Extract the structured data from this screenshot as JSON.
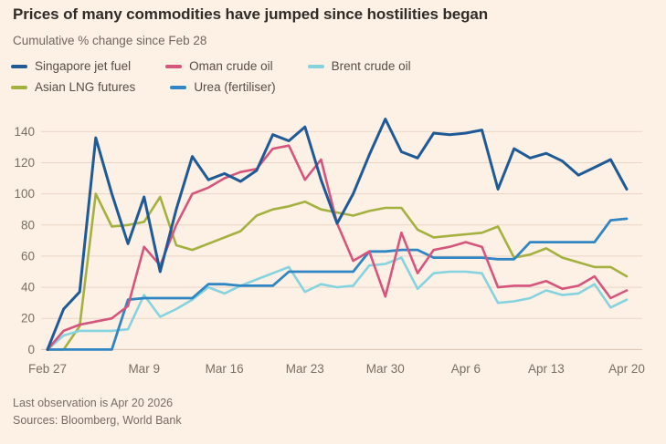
{
  "header": {
    "title": "Prices of many commodities have jumped since hostilities began",
    "subtitle": "Cumulative % change since Feb 28"
  },
  "footer": {
    "note": "Last observation is Apr 20 2026",
    "sources": "Sources: Bloomberg, World Bank"
  },
  "colors": {
    "background": "#fdf0e5",
    "gridline": "#e9d5c6",
    "zero_line": "#d9c3b2",
    "axis_text": "#7a6e62",
    "title_text": "#302c28"
  },
  "chart_data": {
    "type": "line",
    "title": "Prices of many commodities have jumped since hostilities began",
    "subtitle": "Cumulative % change since Feb 28",
    "xlabel": "",
    "ylabel": "Cumulative % change since Feb 28",
    "ylim": [
      0,
      150
    ],
    "grid": "horizontal",
    "legend_position": "top",
    "y_ticks": [
      0,
      20,
      40,
      60,
      80,
      100,
      120,
      140
    ],
    "x_tick_labels": [
      "Feb 27",
      "Mar 9",
      "Mar 16",
      "Mar 23",
      "Mar 30",
      "Apr 6",
      "Apr 13",
      "Apr 20"
    ],
    "x_tick_indices": [
      0,
      6,
      11,
      16,
      21,
      26,
      31,
      36
    ],
    "x": [
      "Feb 27",
      "Mar 2",
      "Mar 3",
      "Mar 4",
      "Mar 5",
      "Mar 6",
      "Mar 9",
      "Mar 10",
      "Mar 11",
      "Mar 12",
      "Mar 13",
      "Mar 16",
      "Mar 17",
      "Mar 18",
      "Mar 19",
      "Mar 20",
      "Mar 23",
      "Mar 24",
      "Mar 25",
      "Mar 26",
      "Mar 27",
      "Mar 30",
      "Mar 31",
      "Apr 1",
      "Apr 2",
      "Apr 3",
      "Apr 6",
      "Apr 7",
      "Apr 8",
      "Apr 9",
      "Apr 10",
      "Apr 13",
      "Apr 14",
      "Apr 15",
      "Apr 16",
      "Apr 17",
      "Apr 20"
    ],
    "series": [
      {
        "name": "Singapore jet fuel",
        "color": "#1e5a96",
        "values": [
          0,
          26,
          37,
          136,
          100,
          68,
          98,
          50,
          90,
          124,
          109,
          113,
          108,
          115,
          138,
          134,
          143,
          109,
          81,
          100,
          125,
          148,
          127,
          123,
          139,
          138,
          139,
          141,
          103,
          129,
          123,
          126,
          121,
          112,
          117,
          122,
          103
        ]
      },
      {
        "name": "Oman crude oil",
        "color": "#d6557d",
        "values": [
          0,
          12,
          16,
          18,
          20,
          28,
          66,
          54,
          80,
          100,
          104,
          110,
          114,
          116,
          129,
          131,
          109,
          122,
          81,
          57,
          63,
          34,
          75,
          49,
          64,
          66,
          69,
          66,
          40,
          41,
          41,
          44,
          39,
          41,
          47,
          33,
          38
        ]
      },
      {
        "name": "Brent crude oil",
        "color": "#86d3e0",
        "values": [
          0,
          9,
          12,
          12,
          12,
          13,
          35,
          21,
          26,
          32,
          40,
          36,
          41,
          45,
          49,
          53,
          37,
          42,
          40,
          41,
          54,
          55,
          59,
          39,
          49,
          50,
          50,
          49,
          30,
          31,
          33,
          38,
          35,
          36,
          42,
          27,
          32
        ]
      },
      {
        "name": "Asian LNG futures",
        "color": "#a4b13f",
        "values": [
          0,
          0,
          15,
          100,
          79,
          80,
          82,
          98,
          67,
          64,
          68,
          72,
          76,
          86,
          90,
          92,
          95,
          90,
          88,
          86,
          89,
          91,
          91,
          77,
          72,
          73,
          74,
          75,
          79,
          59,
          61,
          65,
          59,
          56,
          53,
          53,
          47
        ]
      },
      {
        "name": "Urea (fertiliser)",
        "color": "#2f86c2",
        "values": [
          0,
          0,
          0,
          0,
          0,
          32,
          33,
          33,
          33,
          33,
          42,
          42,
          41,
          41,
          41,
          50,
          50,
          50,
          50,
          50,
          63,
          63,
          64,
          64,
          59,
          59,
          59,
          59,
          58,
          58,
          69,
          69,
          69,
          69,
          69,
          83,
          84
        ]
      }
    ]
  }
}
